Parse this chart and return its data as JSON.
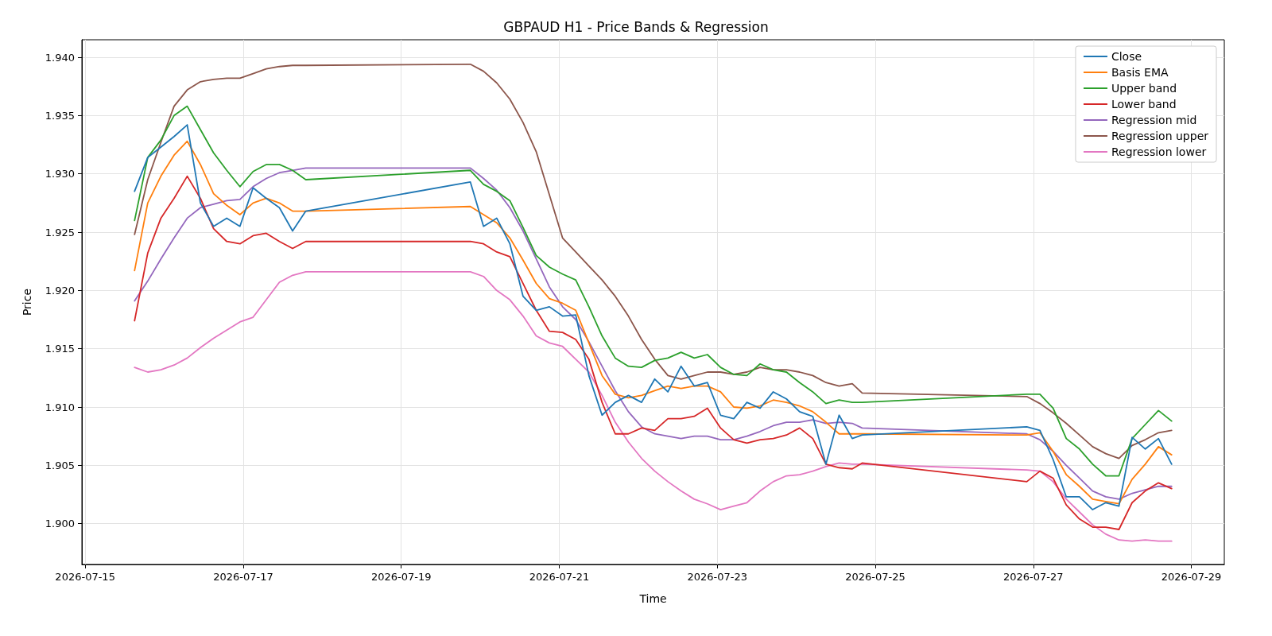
{
  "chart_data": {
    "type": "line",
    "title": "GBPAUD H1 - Price Bands & Regression",
    "xlabel": "Time",
    "ylabel": "Price",
    "x": [
      "2026-07-15T15:00",
      "2026-07-15T19:00",
      "2026-07-15T23:00",
      "2026-07-16T03:00",
      "2026-07-16T07:00",
      "2026-07-16T11:00",
      "2026-07-16T15:00",
      "2026-07-16T19:00",
      "2026-07-16T23:00",
      "2026-07-17T03:00",
      "2026-07-17T07:00",
      "2026-07-17T11:00",
      "2026-07-17T15:00",
      "2026-07-17T19:00",
      "2026-07-19T21:00",
      "2026-07-20T01:00",
      "2026-07-20T05:00",
      "2026-07-20T09:00",
      "2026-07-20T13:00",
      "2026-07-20T17:00",
      "2026-07-20T21:00",
      "2026-07-21T01:00",
      "2026-07-21T05:00",
      "2026-07-21T09:00",
      "2026-07-21T13:00",
      "2026-07-21T17:00",
      "2026-07-21T21:00",
      "2026-07-22T01:00",
      "2026-07-22T05:00",
      "2026-07-22T09:00",
      "2026-07-22T13:00",
      "2026-07-22T17:00",
      "2026-07-22T21:00",
      "2026-07-23T01:00",
      "2026-07-23T05:00",
      "2026-07-23T09:00",
      "2026-07-23T13:00",
      "2026-07-23T17:00",
      "2026-07-23T21:00",
      "2026-07-24T01:00",
      "2026-07-24T05:00",
      "2026-07-24T09:00",
      "2026-07-24T13:00",
      "2026-07-24T17:00",
      "2026-07-24T20:00",
      "2026-07-26T22:00",
      "2026-07-27T02:00",
      "2026-07-27T06:00",
      "2026-07-27T10:00",
      "2026-07-27T14:00",
      "2026-07-27T18:00",
      "2026-07-27T22:00",
      "2026-07-28T02:00",
      "2026-07-28T06:00",
      "2026-07-28T10:00",
      "2026-07-28T14:00",
      "2026-07-28T18:00"
    ],
    "series": [
      {
        "name": "Close",
        "color": "#1f77b4",
        "values": [
          1.9285,
          1.9314,
          1.9323,
          1.9332,
          1.9342,
          1.9275,
          1.9255,
          1.9262,
          1.9255,
          1.9288,
          1.9279,
          1.9271,
          1.9251,
          1.9268,
          1.9293,
          1.9255,
          1.9262,
          1.924,
          1.9195,
          1.9183,
          1.9186,
          1.9178,
          1.9179,
          1.9127,
          1.9093,
          1.9104,
          1.911,
          1.9104,
          1.9124,
          1.9113,
          1.9135,
          1.9118,
          1.9121,
          1.9093,
          1.909,
          1.9104,
          1.9099,
          1.9113,
          1.9107,
          1.9096,
          1.9092,
          1.9051,
          1.9093,
          1.9073,
          1.9076,
          1.9083,
          1.908,
          1.9055,
          1.9023,
          1.9023,
          1.9012,
          1.9018,
          1.9015,
          1.9074,
          1.9064,
          1.9073,
          1.9051
        ]
      },
      {
        "name": "Basis EMA",
        "color": "#ff7f0e",
        "values": [
          1.9217,
          1.9275,
          1.9298,
          1.9316,
          1.9328,
          1.9308,
          1.9283,
          1.9273,
          1.9265,
          1.9275,
          1.9279,
          1.9275,
          1.9268,
          1.9268,
          1.9272,
          1.9265,
          1.9258,
          1.9245,
          1.9226,
          1.9206,
          1.9193,
          1.9189,
          1.9183,
          1.9155,
          1.9127,
          1.9111,
          1.9108,
          1.911,
          1.9114,
          1.9118,
          1.9116,
          1.9118,
          1.9118,
          1.9113,
          1.91,
          1.9099,
          1.9101,
          1.9106,
          1.9104,
          1.9101,
          1.9096,
          1.9087,
          1.9077,
          1.9077,
          1.9077,
          1.9076,
          1.9078,
          1.9062,
          1.9042,
          1.9032,
          1.9021,
          1.9019,
          1.9017,
          1.9038,
          1.9051,
          1.9066,
          1.9059
        ]
      },
      {
        "name": "Upper band",
        "color": "#2ca02c",
        "values": [
          1.926,
          1.9314,
          1.9329,
          1.935,
          1.9358,
          1.9338,
          1.9318,
          1.9303,
          1.9289,
          1.9302,
          1.9308,
          1.9308,
          1.9303,
          1.9295,
          1.9303,
          1.9291,
          1.9285,
          1.9277,
          1.9254,
          1.923,
          1.922,
          1.9214,
          1.9209,
          1.9186,
          1.9161,
          1.9142,
          1.9135,
          1.9134,
          1.914,
          1.9142,
          1.9147,
          1.9142,
          1.9145,
          1.9134,
          1.9128,
          1.9127,
          1.9137,
          1.9132,
          1.913,
          1.9121,
          1.9113,
          1.9103,
          1.9106,
          1.9104,
          1.9104,
          1.9111,
          1.9111,
          1.9099,
          1.9073,
          1.9064,
          1.9051,
          1.9041,
          1.9041,
          1.9073,
          1.9085,
          1.9097,
          1.9088
        ]
      },
      {
        "name": "Lower band",
        "color": "#d62728",
        "values": [
          1.9174,
          1.9232,
          1.9262,
          1.9279,
          1.9298,
          1.9279,
          1.9253,
          1.9242,
          1.924,
          1.9247,
          1.9249,
          1.9242,
          1.9236,
          1.9242,
          1.9242,
          1.924,
          1.9233,
          1.9229,
          1.9206,
          1.9183,
          1.9165,
          1.9164,
          1.9158,
          1.9141,
          1.9104,
          1.9077,
          1.9077,
          1.9082,
          1.908,
          1.909,
          1.909,
          1.9092,
          1.9099,
          1.9082,
          1.9072,
          1.9069,
          1.9072,
          1.9073,
          1.9076,
          1.9082,
          1.9073,
          1.9051,
          1.9048,
          1.9047,
          1.9052,
          1.9036,
          1.9045,
          1.9039,
          1.9016,
          1.9004,
          1.8997,
          1.8997,
          1.8995,
          1.9018,
          1.9028,
          1.9035,
          1.903
        ]
      },
      {
        "name": "Regression mid",
        "color": "#9467bd",
        "values": [
          1.9191,
          1.9208,
          1.9227,
          1.9245,
          1.9262,
          1.9271,
          1.9274,
          1.9277,
          1.9278,
          1.9289,
          1.9296,
          1.9301,
          1.9303,
          1.9305,
          1.9305,
          1.9296,
          1.9286,
          1.9271,
          1.9251,
          1.9227,
          1.9203,
          1.9186,
          1.9175,
          1.9156,
          1.9135,
          1.9114,
          1.9096,
          1.9083,
          1.9077,
          1.9075,
          1.9073,
          1.9075,
          1.9075,
          1.9072,
          1.9072,
          1.9075,
          1.9079,
          1.9084,
          1.9087,
          1.9087,
          1.9089,
          1.9086,
          1.9087,
          1.9086,
          1.9082,
          1.9077,
          1.9072,
          1.9062,
          1.905,
          1.9039,
          1.9028,
          1.9023,
          1.9021,
          1.9026,
          1.9029,
          1.9032,
          1.9032
        ]
      },
      {
        "name": "Regression upper",
        "color": "#8c564b",
        "values": [
          1.9248,
          1.9295,
          1.9327,
          1.9358,
          1.9372,
          1.9379,
          1.9381,
          1.9382,
          1.9382,
          1.9386,
          1.939,
          1.9392,
          1.9393,
          1.9393,
          1.9394,
          1.9388,
          1.9378,
          1.9364,
          1.9344,
          1.9319,
          1.9282,
          1.9245,
          1.9233,
          1.9221,
          1.9209,
          1.9195,
          1.9178,
          1.9158,
          1.9141,
          1.9127,
          1.9124,
          1.9127,
          1.913,
          1.913,
          1.9128,
          1.913,
          1.9134,
          1.9132,
          1.9132,
          1.913,
          1.9127,
          1.9121,
          1.9118,
          1.912,
          1.9112,
          1.9109,
          1.9103,
          1.9095,
          1.9086,
          1.9076,
          1.9066,
          1.906,
          1.9056,
          1.9067,
          1.9072,
          1.9078,
          1.908
        ]
      },
      {
        "name": "Regression lower",
        "color": "#e377c2",
        "values": [
          1.9134,
          1.913,
          1.9132,
          1.9136,
          1.9142,
          1.9151,
          1.9159,
          1.9166,
          1.9173,
          1.9177,
          1.9192,
          1.9207,
          1.9213,
          1.9216,
          1.9216,
          1.9212,
          1.92,
          1.9192,
          1.9178,
          1.9161,
          1.9155,
          1.9152,
          1.9141,
          1.913,
          1.911,
          1.9087,
          1.907,
          1.9056,
          1.9045,
          1.9036,
          1.9028,
          1.9021,
          1.9017,
          1.9012,
          1.9015,
          1.9018,
          1.9028,
          1.9036,
          1.9041,
          1.9042,
          1.9045,
          1.9049,
          1.9052,
          1.9051,
          1.9051,
          1.9046,
          1.9045,
          1.9036,
          1.9021,
          1.901,
          1.8999,
          1.8991,
          1.8986,
          1.8985,
          1.8986,
          1.8985,
          1.8985
        ]
      }
    ],
    "xlim": [
      "2026-07-14T23:00",
      "2026-07-29T10:00"
    ],
    "xticks": [
      "2026-07-15",
      "2026-07-17",
      "2026-07-19",
      "2026-07-21",
      "2026-07-23",
      "2026-07-25",
      "2026-07-27",
      "2026-07-29"
    ],
    "ylim": [
      1.8965,
      1.9415
    ],
    "yticks": [
      {
        "value": 1.9,
        "label": "1.900"
      },
      {
        "value": 1.905,
        "label": "1.905"
      },
      {
        "value": 1.91,
        "label": "1.910"
      },
      {
        "value": 1.915,
        "label": "1.915"
      },
      {
        "value": 1.92,
        "label": "1.920"
      },
      {
        "value": 1.925,
        "label": "1.925"
      },
      {
        "value": 1.93,
        "label": "1.930"
      },
      {
        "value": 1.935,
        "label": "1.935"
      },
      {
        "value": 1.94,
        "label": "1.940"
      }
    ],
    "grid": true,
    "legend": "top right",
    "line_style": "solid"
  }
}
